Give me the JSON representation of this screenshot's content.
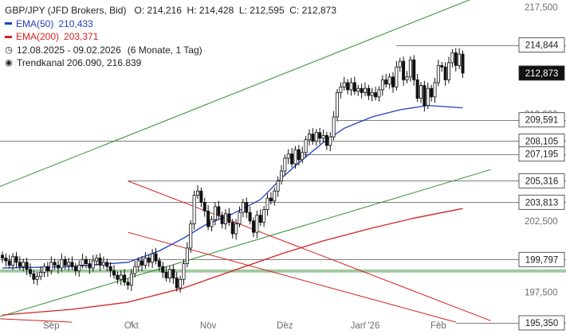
{
  "legend": {
    "title": "GBP/JPY (JFD Brokers, Bid)",
    "ohlc": "O: 214,216  H: 214,428  L: 212,595  C: 212,873",
    "ema50": {
      "label": "EMA(50)",
      "value": "210,433",
      "color": "#1f3fbf"
    },
    "ema200": {
      "label": "EMA(200)",
      "value": "203,371",
      "color": "#d42020"
    },
    "period": "12.08.2025 - 09.02.2026",
    "period_detail": "(6 Monate, 1 Tag)",
    "trend": "Trendkanal 206.090, 216.839",
    "period_icon": "clock-icon",
    "trend_icon": "target-icon"
  },
  "chart_data": {
    "type": "candlestick",
    "xlabel": "",
    "ylabel": "",
    "ylim": [
      195.35,
      218.0
    ],
    "grid": false,
    "x_tick_labels": [
      "Sep",
      "Okt",
      "Nov",
      "Dez",
      "Jan '26",
      "Feb"
    ],
    "x_tick_index": [
      14,
      37,
      59,
      81,
      104,
      125
    ],
    "y_ticks": [
      {
        "value": 217.5,
        "label": "217,500"
      },
      {
        "value": 210.0,
        "label": "210,000"
      },
      {
        "value": 202.5,
        "label": "202,500"
      },
      {
        "value": 197.5,
        "label": "197,500"
      }
    ],
    "close": [
      199.9,
      199.7,
      199.4,
      200.0,
      199.6,
      199.3,
      199.6,
      199.1,
      198.8,
      198.4,
      198.6,
      198.9,
      199.3,
      199.0,
      199.6,
      199.4,
      199.2,
      199.8,
      199.4,
      199.6,
      199.3,
      199.0,
      199.4,
      199.8,
      199.5,
      199.2,
      199.7,
      199.9,
      199.4,
      199.6,
      199.3,
      199.0,
      198.7,
      198.4,
      198.7,
      198.2,
      198.0,
      198.8,
      199.3,
      199.7,
      199.4,
      199.9,
      199.6,
      200.2,
      199.7,
      199.3,
      198.9,
      198.5,
      199.1,
      198.5,
      197.8,
      198.4,
      199.5,
      200.6,
      202.3,
      204.3,
      204.6,
      203.8,
      203.2,
      202.1,
      202.6,
      203.5,
      202.9,
      202.3,
      203.0,
      202.4,
      201.6,
      202.3,
      203.1,
      203.8,
      203.1,
      202.5,
      201.7,
      202.9,
      202.4,
      203.3,
      204.1,
      203.9,
      204.6,
      205.3,
      206.0,
      206.9,
      207.2,
      206.5,
      207.5,
      206.8,
      207.3,
      208.2,
      208.6,
      208.1,
      208.7,
      208.3,
      208.5,
      207.8,
      208.4,
      209.8,
      211.5,
      211.9,
      212.2,
      211.7,
      212.2,
      211.6,
      211.8,
      211.5,
      211.8,
      211.3,
      211.5,
      211.2,
      211.7,
      212.4,
      212.1,
      212.6,
      211.9,
      213.3,
      213.7,
      212.4,
      212.6,
      213.8,
      212.4,
      211.1,
      212.0,
      210.6,
      211.8,
      211.2,
      212.2,
      213.4,
      213.3,
      212.4,
      213.6,
      214.3,
      213.4,
      214.2,
      212.873
    ],
    "ema50": [
      [
        0,
        199.2
      ],
      [
        20,
        199.3
      ],
      [
        36,
        199.6
      ],
      [
        45,
        200.4
      ],
      [
        52,
        201.3
      ],
      [
        58,
        202.2
      ],
      [
        66,
        203.0
      ],
      [
        74,
        204.0
      ],
      [
        80,
        205.5
      ],
      [
        86,
        206.8
      ],
      [
        92,
        208.0
      ],
      [
        98,
        209.0
      ],
      [
        106,
        209.8
      ],
      [
        114,
        210.3
      ],
      [
        122,
        210.6
      ],
      [
        132,
        210.433
      ]
    ],
    "ema200": [
      [
        0,
        195.9
      ],
      [
        20,
        196.3
      ],
      [
        36,
        196.8
      ],
      [
        52,
        197.8
      ],
      [
        66,
        199.0
      ],
      [
        80,
        200.2
      ],
      [
        92,
        201.1
      ],
      [
        106,
        202.0
      ],
      [
        118,
        202.7
      ],
      [
        132,
        203.371
      ]
    ],
    "trend_channel": {
      "lower": [
        [
          -6,
          195.4
        ],
        [
          140,
          206.1
        ]
      ],
      "upper": [
        [
          -6,
          204.4
        ],
        [
          140,
          218.6
        ]
      ],
      "color": "#2f8f2f"
    },
    "down_channel": {
      "upper": [
        [
          36,
          205.3
        ],
        [
          140,
          195.5
        ]
      ],
      "lower": [
        [
          36,
          201.7
        ],
        [
          130,
          195.4
        ]
      ],
      "lower_left": [
        [
          -6,
          195.7
        ],
        [
          20,
          195.4
        ]
      ],
      "color": "#d42020"
    },
    "support_zone": {
      "from": 199.1,
      "to": 198.9,
      "color": "#8fbf8f"
    },
    "levels": [
      {
        "value": 214.844,
        "label": "214,844",
        "from_index": 113
      },
      {
        "value": 209.591,
        "label": "209,591",
        "from_index": 96
      },
      {
        "value": 208.105,
        "label": "208,105",
        "from_index": -6
      },
      {
        "value": 207.195,
        "label": "207,195",
        "from_index": 86
      },
      {
        "value": 205.316,
        "label": "205,316",
        "from_index": 36
      },
      {
        "value": 203.813,
        "label": "203,813",
        "from_index": -6
      },
      {
        "value": 199.797,
        "label": "199,797",
        "from_index": -6
      },
      {
        "value": 195.35,
        "label": "195,350",
        "from_index": 130
      }
    ],
    "current_price": {
      "value": 212.873,
      "label": "212,873"
    }
  }
}
